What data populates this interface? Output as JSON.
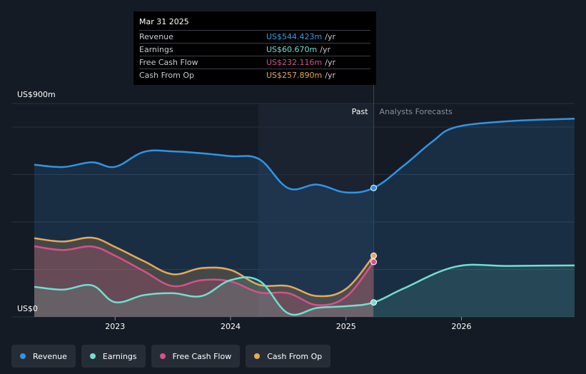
{
  "tooltip": {
    "date": "Mar 31 2025",
    "rows": [
      {
        "label": "Revenue",
        "value": "US$544.423m",
        "unit": "/yr",
        "color": "#3b9ae8"
      },
      {
        "label": "Earnings",
        "value": "US$60.670m",
        "unit": "/yr",
        "color": "#6fe0cf"
      },
      {
        "label": "Free Cash Flow",
        "value": "US$232.116m",
        "unit": "/yr",
        "color": "#d9508a"
      },
      {
        "label": "Cash From Op",
        "value": "US$257.890m",
        "unit": "/yr",
        "color": "#e8a95a"
      }
    ]
  },
  "legend": [
    {
      "label": "Revenue",
      "color": "#2f95e6"
    },
    {
      "label": "Earnings",
      "color": "#6fe0cf"
    },
    {
      "label": "Free Cash Flow",
      "color": "#d9508a"
    },
    {
      "label": "Cash From Op",
      "color": "#e8a95a"
    }
  ],
  "chart_data": {
    "type": "line",
    "y_max_label": "US$900m",
    "y_min_label": "US$0",
    "ylim": [
      0,
      900
    ],
    "xlim": [
      2022.3,
      2026.98
    ],
    "x_ticks": [
      2023,
      2024,
      2025,
      2026
    ],
    "x_tick_labels": [
      "2023",
      "2024",
      "2025",
      "2026"
    ],
    "past_label": "Past",
    "forecast_label": "Analysts Forecasts",
    "past_end": 2025.24,
    "shaded_region_start": 2024.24,
    "series": [
      {
        "name": "Revenue",
        "color": "#2f95e6",
        "fill": true,
        "x": [
          2022.3,
          2022.55,
          2022.8,
          2023.0,
          2023.25,
          2023.5,
          2023.75,
          2024.0,
          2024.25,
          2024.5,
          2024.75,
          2025.0,
          2025.24,
          2025.5,
          2025.75,
          2025.95,
          2026.4,
          2026.98
        ],
        "values": [
          642,
          632,
          652,
          633,
          696,
          698,
          690,
          678,
          665,
          543,
          558,
          525,
          544,
          638,
          740,
          800,
          825,
          836
        ],
        "forecast_from": 2025.24
      },
      {
        "name": "Cash From Op",
        "color": "#e8a95a",
        "fill": true,
        "x": [
          2022.3,
          2022.55,
          2022.8,
          2023.0,
          2023.25,
          2023.5,
          2023.75,
          2024.0,
          2024.25,
          2024.5,
          2024.75,
          2025.0,
          2025.24
        ],
        "values": [
          332,
          318,
          334,
          295,
          235,
          180,
          206,
          198,
          135,
          130,
          88,
          118,
          258
        ]
      },
      {
        "name": "Free Cash Flow",
        "color": "#d9508a",
        "fill": true,
        "x": [
          2022.3,
          2022.55,
          2022.8,
          2023.0,
          2023.25,
          2023.5,
          2023.75,
          2024.0,
          2024.25,
          2024.5,
          2024.75,
          2025.0,
          2025.24
        ],
        "values": [
          298,
          282,
          297,
          258,
          193,
          130,
          155,
          150,
          103,
          100,
          50,
          85,
          232
        ]
      },
      {
        "name": "Earnings",
        "color": "#6fe0cf",
        "fill": true,
        "x": [
          2022.3,
          2022.55,
          2022.8,
          2023.0,
          2023.25,
          2023.5,
          2023.75,
          2024.0,
          2024.25,
          2024.5,
          2024.75,
          2025.0,
          2025.24,
          2025.5,
          2025.95,
          2026.4,
          2026.98
        ],
        "values": [
          127,
          115,
          133,
          62,
          92,
          100,
          88,
          155,
          152,
          15,
          38,
          45,
          61,
          120,
          212,
          215,
          217
        ],
        "forecast_from": 2025.24
      }
    ],
    "markers": [
      {
        "series": "Revenue",
        "x": 2025.24,
        "value": 544
      },
      {
        "series": "Cash From Op",
        "x": 2025.24,
        "value": 258
      },
      {
        "series": "Free Cash Flow",
        "x": 2025.24,
        "value": 232
      },
      {
        "series": "Earnings",
        "x": 2025.24,
        "value": 61
      }
    ]
  }
}
